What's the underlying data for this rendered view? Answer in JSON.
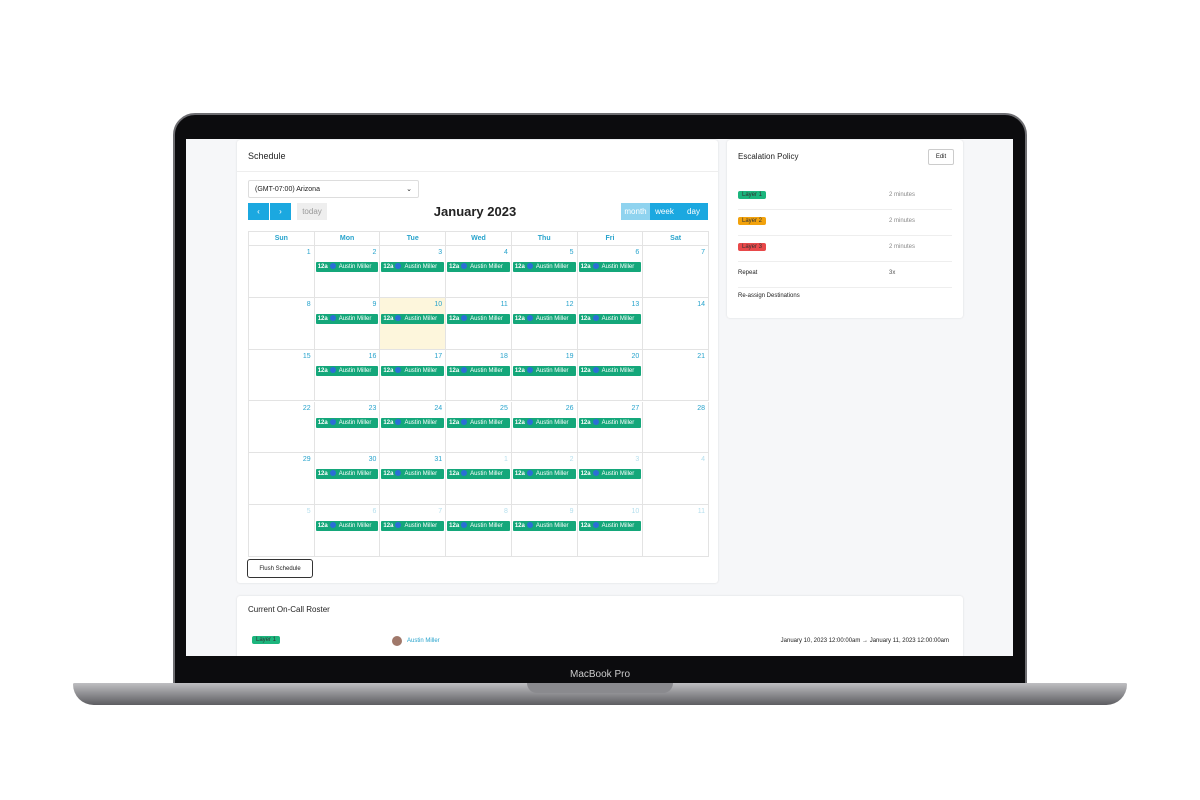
{
  "device_label": "MacBook Pro",
  "schedule": {
    "title": "Schedule",
    "timezone": "(GMT-07:00) Arizona",
    "today_button": "today",
    "month_title": "January 2023",
    "views": [
      "month",
      "week",
      "day"
    ],
    "weekdays": [
      "Sun",
      "Mon",
      "Tue",
      "Wed",
      "Thu",
      "Fri",
      "Sat"
    ],
    "weeks": [
      [
        1,
        2,
        3,
        4,
        5,
        6,
        7
      ],
      [
        8,
        9,
        10,
        11,
        12,
        13,
        14
      ],
      [
        15,
        16,
        17,
        18,
        19,
        20,
        21
      ],
      [
        22,
        23,
        24,
        25,
        26,
        27,
        28
      ],
      [
        29,
        30,
        31,
        1,
        2,
        3,
        4
      ],
      [
        5,
        6,
        7,
        8,
        9,
        10,
        11
      ]
    ],
    "event_time": "12a",
    "event_name": "Austin Miller",
    "flush_button": "Flush Schedule"
  },
  "escalation": {
    "title": "Escalation Policy",
    "edit_button": "Edit",
    "layers": [
      {
        "name": "Layer 1",
        "delay": "2 minutes"
      },
      {
        "name": "Layer 2",
        "delay": "2 minutes"
      },
      {
        "name": "Layer 3",
        "delay": "2 minutes"
      }
    ],
    "repeat_label": "Repeat",
    "repeat_value": "3x",
    "reassign": "Re-assign Destinations"
  },
  "roster": {
    "title": "Current On-Call Roster",
    "rows": [
      {
        "layer": "Layer 1",
        "user": "Austin Miller",
        "period": "January 10, 2023 12:00:00am → January 11, 2023 12:00:00am"
      }
    ]
  }
}
